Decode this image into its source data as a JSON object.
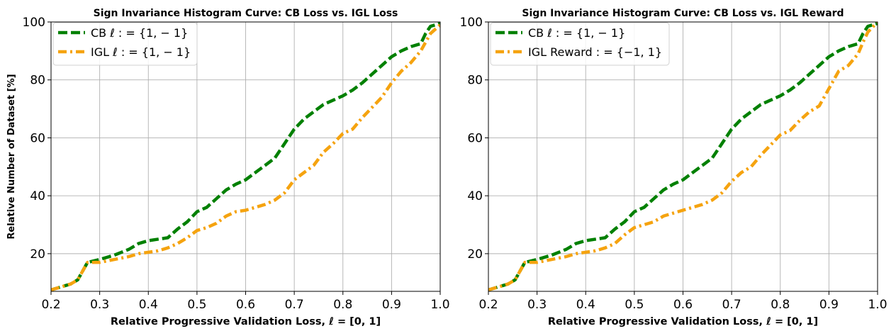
{
  "chart_data": [
    {
      "type": "line",
      "title": "Sign Invariance Histogram Curve: CB Loss vs. IGL Loss",
      "xlabel": "Relative Progressive Validation Loss,  ℓ = [0, 1]",
      "ylabel": "Relative Number of Dataset [%]",
      "xlim": [
        0.2,
        1.0
      ],
      "ylim": [
        7,
        100
      ],
      "xticks": [
        "0.2",
        "0.3",
        "0.4",
        "0.5",
        "0.6",
        "0.7",
        "0.8",
        "0.9",
        "1.0"
      ],
      "yticks": [
        "20",
        "40",
        "60",
        "80",
        "100"
      ],
      "grid": true,
      "legend_position": "top-left",
      "series": [
        {
          "name": "CB ℓ : = {1, − 1}",
          "color": "#008000",
          "style": "dashed",
          "x": [
            0.2,
            0.22,
            0.24,
            0.255,
            0.265,
            0.275,
            0.3,
            0.33,
            0.36,
            0.38,
            0.4,
            0.42,
            0.44,
            0.46,
            0.48,
            0.5,
            0.52,
            0.54,
            0.56,
            0.58,
            0.6,
            0.62,
            0.64,
            0.66,
            0.68,
            0.7,
            0.72,
            0.74,
            0.76,
            0.78,
            0.8,
            0.82,
            0.84,
            0.86,
            0.88,
            0.9,
            0.92,
            0.94,
            0.96,
            0.97,
            0.98,
            1.0
          ],
          "y": [
            7.5,
            8.5,
            9.5,
            11,
            14,
            17,
            18,
            19.5,
            21.5,
            23.5,
            24.5,
            25,
            25.5,
            28.5,
            31,
            34.5,
            36,
            39,
            42,
            44,
            45.5,
            48,
            50.5,
            53,
            58,
            63,
            66.5,
            69,
            71.5,
            73,
            74.5,
            76.5,
            79,
            82,
            85,
            88,
            90,
            91.5,
            92.5,
            96,
            98.5,
            99.5
          ]
        },
        {
          "name": "IGL ℓ : = {1, − 1}",
          "color": "#f5a30f",
          "style": "dashdot",
          "x": [
            0.2,
            0.22,
            0.24,
            0.255,
            0.265,
            0.275,
            0.3,
            0.33,
            0.36,
            0.38,
            0.4,
            0.42,
            0.44,
            0.46,
            0.48,
            0.5,
            0.52,
            0.54,
            0.56,
            0.58,
            0.6,
            0.62,
            0.64,
            0.66,
            0.68,
            0.7,
            0.72,
            0.74,
            0.76,
            0.78,
            0.8,
            0.82,
            0.84,
            0.86,
            0.88,
            0.9,
            0.92,
            0.94,
            0.96,
            0.97,
            0.98,
            1.0
          ],
          "y": [
            7.5,
            8.5,
            9.5,
            11,
            14,
            17,
            17,
            18,
            19,
            20,
            20.5,
            21,
            22,
            23.5,
            25.5,
            28,
            29,
            30.5,
            33,
            34.5,
            35,
            36,
            37,
            38.5,
            41,
            45.5,
            48,
            50.5,
            55,
            58,
            61.5,
            63,
            67,
            70.5,
            74,
            79,
            83,
            86,
            90,
            93,
            96,
            99
          ]
        }
      ]
    },
    {
      "type": "line",
      "title": "Sign Invariance Histogram Curve: CB Loss vs. IGL Reward",
      "xlabel": "Relative Progressive Validation Loss,  ℓ = [0, 1]",
      "ylabel": "",
      "xlim": [
        0.2,
        1.0
      ],
      "ylim": [
        7,
        100
      ],
      "xticks": [
        "0.2",
        "0.3",
        "0.4",
        "0.5",
        "0.6",
        "0.7",
        "0.8",
        "0.9",
        "1.0"
      ],
      "yticks": [
        "20",
        "40",
        "60",
        "80",
        "100"
      ],
      "grid": true,
      "legend_position": "top-left",
      "series": [
        {
          "name": "CB ℓ : = {1, − 1}",
          "color": "#008000",
          "style": "dashed",
          "x": [
            0.2,
            0.22,
            0.24,
            0.255,
            0.265,
            0.275,
            0.3,
            0.33,
            0.36,
            0.38,
            0.4,
            0.42,
            0.44,
            0.46,
            0.48,
            0.5,
            0.52,
            0.54,
            0.56,
            0.58,
            0.6,
            0.62,
            0.64,
            0.66,
            0.68,
            0.7,
            0.72,
            0.74,
            0.76,
            0.78,
            0.8,
            0.82,
            0.84,
            0.86,
            0.88,
            0.9,
            0.92,
            0.94,
            0.96,
            0.97,
            0.98,
            1.0
          ],
          "y": [
            7.5,
            8.5,
            9.5,
            11,
            14,
            17,
            18,
            19.5,
            21.5,
            23.5,
            24.5,
            25,
            25.5,
            28.5,
            31,
            34.5,
            36,
            39,
            42,
            44,
            45.5,
            48,
            50.5,
            53,
            58,
            63,
            66.5,
            69,
            71.5,
            73,
            74.5,
            76.5,
            79,
            82,
            85,
            88,
            90,
            91.5,
            92.5,
            96,
            98.5,
            99.5
          ]
        },
        {
          "name": "IGL Reward : = {−1, 1}",
          "color": "#f5a30f",
          "style": "dashdot",
          "x": [
            0.2,
            0.22,
            0.24,
            0.255,
            0.265,
            0.275,
            0.3,
            0.33,
            0.36,
            0.38,
            0.4,
            0.42,
            0.44,
            0.46,
            0.48,
            0.5,
            0.52,
            0.54,
            0.56,
            0.58,
            0.6,
            0.62,
            0.64,
            0.66,
            0.68,
            0.7,
            0.72,
            0.74,
            0.76,
            0.78,
            0.8,
            0.82,
            0.84,
            0.86,
            0.88,
            0.9,
            0.92,
            0.94,
            0.96,
            0.97,
            0.98,
            1.0
          ],
          "y": [
            7.5,
            8.5,
            9.5,
            11,
            14,
            17,
            17,
            18,
            19,
            20,
            20.5,
            21,
            22,
            23.5,
            26.5,
            29,
            30,
            31,
            33,
            34,
            35,
            36,
            37,
            38.5,
            41,
            45,
            48,
            50,
            54,
            57.5,
            61,
            62.5,
            66,
            69,
            71,
            77,
            83,
            85,
            89,
            93,
            96.5,
            100
          ]
        }
      ]
    }
  ]
}
